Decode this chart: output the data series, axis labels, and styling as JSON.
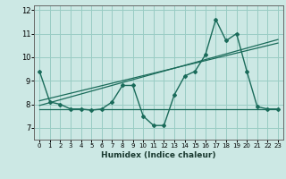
{
  "title": "",
  "xlabel": "Humidex (Indice chaleur)",
  "background_color": "#cce8e4",
  "grid_color": "#99ccc4",
  "line_color": "#1a6b5a",
  "xlim": [
    -0.5,
    23.5
  ],
  "ylim": [
    6.5,
    12.2
  ],
  "yticks": [
    7,
    8,
    9,
    10,
    11,
    12
  ],
  "xticks": [
    0,
    1,
    2,
    3,
    4,
    5,
    6,
    7,
    8,
    9,
    10,
    11,
    12,
    13,
    14,
    15,
    16,
    17,
    18,
    19,
    20,
    21,
    22,
    23
  ],
  "series1_x": [
    0,
    1,
    2,
    3,
    4,
    5,
    6,
    7,
    8,
    9,
    10,
    11,
    12,
    13,
    14,
    15,
    16,
    17,
    18,
    19,
    20,
    21,
    22,
    23
  ],
  "series1_y": [
    9.4,
    8.1,
    8.0,
    7.8,
    7.8,
    7.75,
    7.8,
    8.1,
    8.8,
    8.8,
    7.5,
    7.1,
    7.1,
    8.4,
    9.2,
    9.4,
    10.1,
    11.6,
    10.7,
    11.0,
    9.4,
    7.9,
    7.8,
    7.8
  ],
  "series2_x": [
    0,
    23
  ],
  "series2_y": [
    7.95,
    10.75
  ],
  "series3_x": [
    0,
    23
  ],
  "series3_y": [
    7.8,
    7.8
  ],
  "series4_x": [
    0,
    23
  ],
  "series4_y": [
    8.15,
    10.6
  ]
}
